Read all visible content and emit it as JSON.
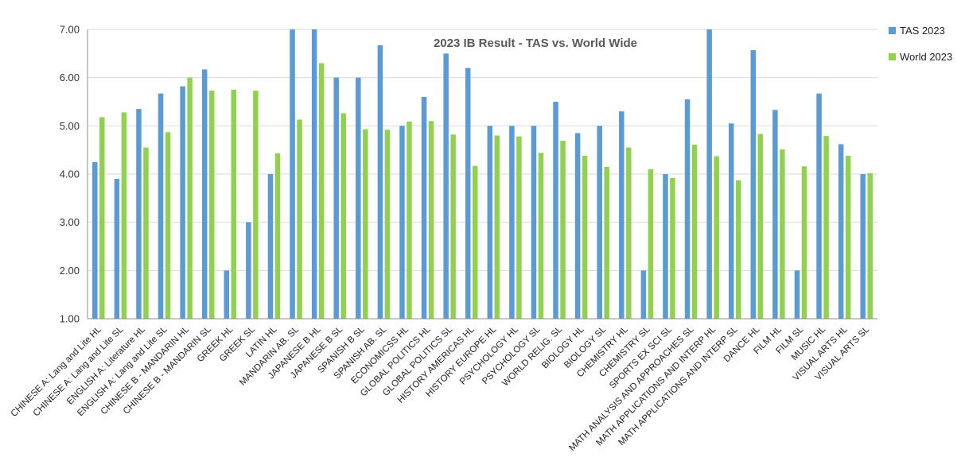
{
  "chart_data": {
    "type": "bar",
    "title": "2023 IB Result - TAS vs. World Wide",
    "xlabel": "",
    "ylabel": "",
    "ylim": [
      1,
      7
    ],
    "yticks": [
      "1.00",
      "2.00",
      "3.00",
      "4.00",
      "5.00",
      "6.00",
      "7.00"
    ],
    "grid": true,
    "legend_position": "right",
    "categories": [
      "CHINESE A: Lang and Lite HL",
      "CHINESE A: Lang and Lite SL",
      "ENGLISH A: Literature HL",
      "ENGLISH A: Lang and Lite SL",
      "CHINESE B - MANDARIN HL",
      "CHINESE B - MANDARIN SL",
      "GREEK HL",
      "GREEK SL",
      "LATIN HL",
      "MANDARIN AB. SL",
      "JAPANESE B HL",
      "JAPANESE B SL",
      "SPANISH B SL",
      "SPANISH AB. SL",
      "ECONOMICSS HL",
      "GLOBAL POLITICS HL",
      "GLOBAL POLITICS SL",
      "HISTORY AMERICAS HL",
      "HISTORY EUROPE HL",
      "PSYCHOLOGY HL",
      "PSYCHOLOGY SL",
      "WORLD RELIG. SL",
      "BIOLOGY HL",
      "BIOLOGY SL",
      "CHEMISTRY HL",
      "CHEMISTRY SL",
      "SPORTS EX SCI SL",
      "MATH ANALYSIS AND APPROACHES SL",
      "MATH APPLICATIONS AND INTERP HL",
      "MATH APPLICATIONS AND INTERP SL",
      "DANCE HL",
      "FILM HL",
      "FILM SL",
      "MUSIC HL",
      "VISUAL ARTS HL",
      "VISUAL ARTS SL"
    ],
    "series": [
      {
        "name": "TAS 2023",
        "color": "#5b9bd5",
        "values": [
          4.25,
          3.9,
          5.35,
          5.67,
          5.82,
          6.17,
          2.0,
          3.0,
          4.0,
          7.0,
          7.0,
          6.0,
          6.0,
          6.67,
          5.0,
          5.6,
          6.5,
          6.2,
          5.0,
          5.0,
          5.0,
          5.5,
          4.85,
          5.0,
          5.3,
          2.0,
          4.0,
          5.55,
          7.0,
          5.05,
          6.57,
          5.33,
          2.0,
          5.67,
          4.62,
          4.0
        ]
      },
      {
        "name": "World 2023",
        "color": "#92d050",
        "values": [
          5.18,
          5.28,
          4.55,
          4.87,
          6.0,
          5.73,
          5.75,
          5.73,
          4.43,
          5.13,
          6.3,
          5.26,
          4.93,
          4.92,
          5.09,
          5.1,
          4.82,
          4.17,
          4.8,
          4.78,
          4.44,
          4.69,
          4.38,
          4.15,
          4.55,
          4.1,
          3.92,
          4.61,
          4.37,
          3.87,
          4.83,
          4.51,
          4.16,
          4.79,
          4.38,
          4.02
        ]
      }
    ]
  }
}
